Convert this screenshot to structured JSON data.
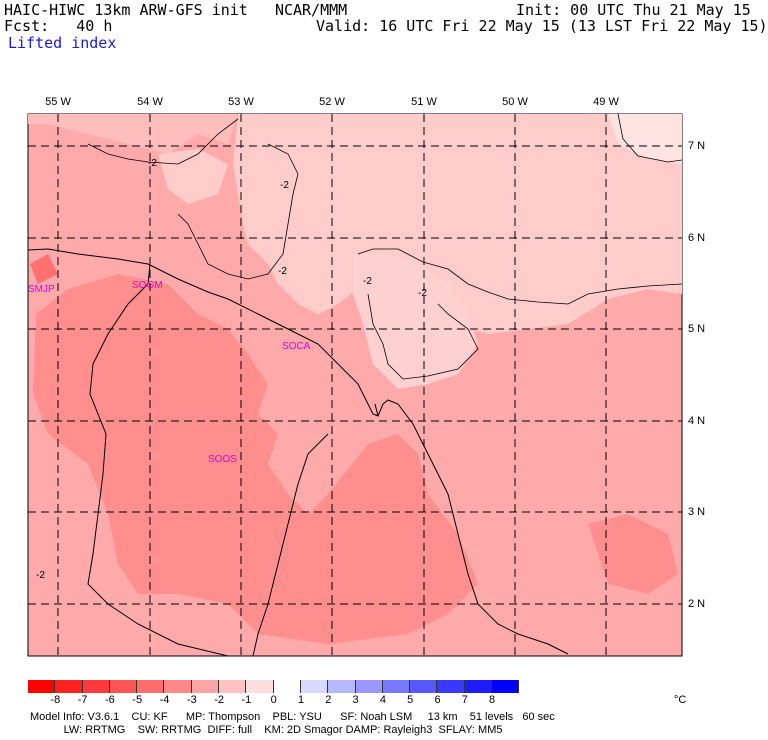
{
  "header": {
    "model": "HAIC-HIWC 13km ARW-GFS init",
    "org": "NCAR/MMM",
    "init": "Init: 00 UTC Thu 21 May 15",
    "fcst": "Fcst:   40 h",
    "valid": "Valid: 16 UTC Fri 22 May 15 (13 LST Fri 22 May 15)",
    "field": "Lifted index"
  },
  "longitudes": [
    "55 W",
    "54 W",
    "53 W",
    "52 W",
    "51 W",
    "50 W",
    "49 W"
  ],
  "latitudes": [
    "7 N",
    "6 N",
    "5 N",
    "4 N",
    "3 N",
    "2 N"
  ],
  "stations": [
    "SMJP",
    "SOGM",
    "SOCA",
    "SOOS"
  ],
  "contour_label": "-2",
  "colorbar": {
    "ticks": [
      "-8",
      "-7",
      "-6",
      "-5",
      "-4",
      "-3",
      "-2",
      "-1",
      "0",
      "1",
      "2",
      "3",
      "4",
      "5",
      "6",
      "7",
      "8"
    ],
    "unit": "°C",
    "colors": [
      "#ff0000",
      "#ff2020",
      "#ff3a3a",
      "#ff5454",
      "#ff6e6e",
      "#ff8888",
      "#ffa4a4",
      "#ffc2c2",
      "#ffdede",
      "#ffffff",
      "#d8d8ff",
      "#b8b8ff",
      "#9898ff",
      "#7878ff",
      "#5858ff",
      "#3838ff",
      "#1c1cff",
      "#0000ff"
    ]
  },
  "footer": {
    "line1": "Model Info: V3.6.1    CU: KF      MP: Thompson    PBL: YSU      SF: Noah LSM     13 km    51 levels   60 sec",
    "line2": "           LW: RRTMG    SW: RRTMG  DIFF: full    KM: 2D Smagor DAMP: Rayleigh3  SFLAY: MM5"
  }
}
